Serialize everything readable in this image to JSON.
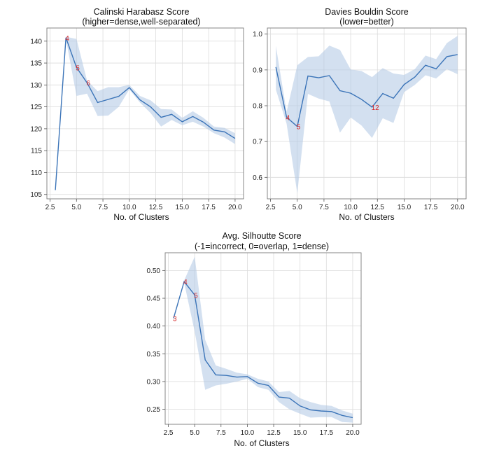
{
  "figure": {
    "chart_data": [
      {
        "type": "line",
        "title": "Calinski Harabasz Score",
        "subtitle": "(higher=dense,well-separated)",
        "xlabel": "No. of Clusters",
        "ylabel": "",
        "xlim": [
          2.2,
          20.8
        ],
        "ylim": [
          104,
          143
        ],
        "xticks": [
          2.5,
          5.0,
          7.5,
          10.0,
          12.5,
          15.0,
          17.5,
          20.0
        ],
        "yticks": [
          105,
          110,
          115,
          120,
          125,
          130,
          135,
          140
        ],
        "grid": true,
        "x": [
          3,
          4,
          5,
          6,
          7,
          8,
          9,
          10,
          11,
          12,
          13,
          14,
          15,
          16,
          17,
          18,
          19,
          20
        ],
        "series": [
          {
            "name": "mean",
            "values": [
              106,
              140.8,
              134,
              130.5,
              126,
              126.7,
              127.4,
              129.4,
              126.6,
              125,
              122.6,
              123.3,
              121.6,
              122.8,
              121.5,
              119.7,
              119.3,
              117.8
            ],
            "lower": [
              106,
              140.5,
              127.5,
              128,
              122.9,
              123,
              125,
              129,
              126,
              123.6,
              120.5,
              122,
              120.8,
              121.6,
              120.5,
              119,
              118,
              116.5
            ],
            "upper": [
              106,
              141,
              140.5,
              131,
              128.6,
              129.5,
              129.5,
              130,
              127.5,
              126.5,
              124.5,
              124.4,
              122.5,
              124,
              122.5,
              120.5,
              120.2,
              119
            ]
          }
        ],
        "annotations": [
          {
            "label": "4",
            "x": 4,
            "y": 140.8
          },
          {
            "label": "5",
            "x": 5,
            "y": 134
          },
          {
            "label": "6",
            "x": 6,
            "y": 130.5
          }
        ]
      },
      {
        "type": "line",
        "title": "Davies Bouldin Score",
        "subtitle": "(lower=better)",
        "xlabel": "No. of Clusters",
        "ylabel": "",
        "xlim": [
          2.2,
          20.8
        ],
        "ylim": [
          0.54,
          1.017
        ],
        "xticks": [
          2.5,
          5.0,
          7.5,
          10.0,
          12.5,
          15.0,
          17.5,
          20.0
        ],
        "yticks": [
          0.6,
          0.7,
          0.8,
          0.9,
          1.0
        ],
        "grid": true,
        "x": [
          3,
          4,
          5,
          6,
          7,
          8,
          9,
          10,
          11,
          12,
          13,
          14,
          15,
          16,
          17,
          18,
          19,
          20
        ],
        "series": [
          {
            "name": "mean",
            "values": [
              0.908,
              0.768,
              0.742,
              0.883,
              0.878,
              0.884,
              0.842,
              0.835,
              0.818,
              0.796,
              0.834,
              0.821,
              0.859,
              0.88,
              0.913,
              0.903,
              0.937,
              0.943
            ],
            "lower": [
              0.845,
              0.75,
              0.555,
              0.833,
              0.82,
              0.812,
              0.725,
              0.767,
              0.745,
              0.71,
              0.765,
              0.752,
              0.838,
              0.858,
              0.885,
              0.876,
              0.902,
              0.888
            ],
            "upper": [
              0.967,
              0.783,
              0.913,
              0.936,
              0.938,
              0.968,
              0.956,
              0.901,
              0.897,
              0.88,
              0.905,
              0.89,
              0.886,
              0.902,
              0.94,
              0.93,
              0.975,
              0.995
            ]
          }
        ],
        "annotations": [
          {
            "label": "4",
            "x": 4,
            "y": 0.768
          },
          {
            "label": "5",
            "x": 5,
            "y": 0.742
          },
          {
            "label": "12",
            "x": 12,
            "y": 0.796
          }
        ]
      },
      {
        "type": "line",
        "title": "Avg. Silhoutte Score",
        "subtitle": "(-1=incorrect, 0=overlap, 1=dense)",
        "xlabel": "No. of Clusters",
        "ylabel": "",
        "xlim": [
          2.2,
          20.8
        ],
        "ylim": [
          0.223,
          0.532
        ],
        "xticks": [
          2.5,
          5.0,
          7.5,
          10.0,
          12.5,
          15.0,
          17.5,
          20.0
        ],
        "yticks": [
          0.25,
          0.3,
          0.35,
          0.4,
          0.45,
          0.5
        ],
        "grid": true,
        "x": [
          3,
          4,
          5,
          6,
          7,
          8,
          9,
          10,
          11,
          12,
          13,
          14,
          15,
          16,
          17,
          18,
          19,
          20
        ],
        "series": [
          {
            "name": "mean",
            "values": [
              0.414,
              0.48,
              0.456,
              0.339,
              0.312,
              0.311,
              0.308,
              0.309,
              0.297,
              0.293,
              0.272,
              0.27,
              0.256,
              0.249,
              0.247,
              0.246,
              0.239,
              0.235
            ],
            "lower": [
              0.414,
              0.478,
              0.39,
              0.285,
              0.293,
              0.296,
              0.3,
              0.305,
              0.29,
              0.285,
              0.263,
              0.25,
              0.242,
              0.235,
              0.236,
              0.236,
              0.227,
              0.226
            ],
            "upper": [
              0.414,
              0.482,
              0.525,
              0.375,
              0.329,
              0.323,
              0.316,
              0.313,
              0.305,
              0.3,
              0.281,
              0.283,
              0.27,
              0.263,
              0.258,
              0.256,
              0.248,
              0.242
            ]
          }
        ],
        "annotations": [
          {
            "label": "3",
            "x": 3,
            "y": 0.414
          },
          {
            "label": "4",
            "x": 4,
            "y": 0.48
          },
          {
            "label": "5",
            "x": 5,
            "y": 0.456
          }
        ]
      }
    ]
  }
}
